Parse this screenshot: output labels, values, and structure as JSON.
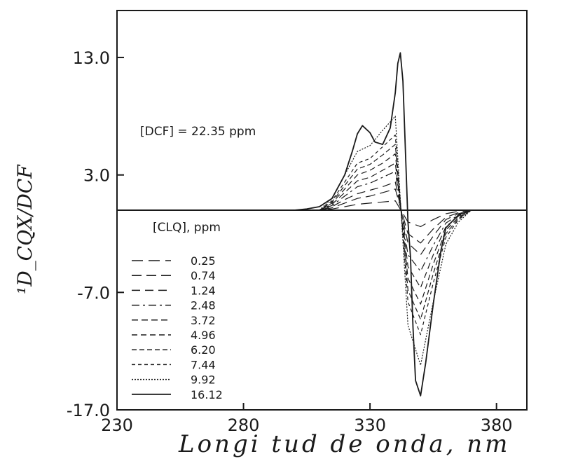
{
  "chart_data": {
    "type": "line",
    "title": "",
    "xlabel": "Longi tud de onda, nm",
    "ylabel": "¹D_CQX/DCF",
    "xlim": [
      230,
      392
    ],
    "ylim": [
      -17,
      17
    ],
    "x_ticks": [
      230,
      280,
      330,
      380
    ],
    "y_ticks": [
      13.0,
      3.0,
      -7.0,
      -17.0
    ],
    "x_tick_labels": [
      "230",
      "280",
      "330",
      "380"
    ],
    "y_tick_labels": [
      "13.0",
      "3.0",
      "-7.0",
      "-17.0"
    ],
    "grid": false,
    "legend_position": "bottom-left",
    "annotations": {
      "dcf": "[DCF] = 22.35 ppm",
      "legend_title": "[CLQ], ppm"
    },
    "series": [
      {
        "name": "0.25",
        "x": [
          300,
          310,
          315,
          320,
          325,
          330,
          335,
          340,
          345,
          350,
          355,
          360,
          365,
          370,
          375,
          380,
          385
        ],
        "y": [
          0,
          0,
          0.1,
          0.3,
          0.5,
          0.6,
          0.7,
          0.8,
          -1.0,
          -1.4,
          -0.8,
          -0.3,
          -0.1,
          0,
          0,
          0,
          0
        ]
      },
      {
        "name": "0.74",
        "x": [
          300,
          310,
          315,
          320,
          325,
          330,
          335,
          340,
          345,
          350,
          355,
          360,
          365,
          370,
          375,
          380,
          385
        ],
        "y": [
          0,
          0,
          0.2,
          0.6,
          1.0,
          1.2,
          1.5,
          1.8,
          -2.0,
          -2.8,
          -1.6,
          -0.6,
          -0.2,
          0,
          0,
          0,
          0
        ]
      },
      {
        "name": "1.24",
        "x": [
          300,
          310,
          315,
          320,
          325,
          330,
          335,
          340,
          345,
          350,
          355,
          360,
          365,
          370,
          375,
          380,
          385
        ],
        "y": [
          0,
          0,
          0.3,
          0.9,
          1.4,
          1.7,
          2.0,
          2.4,
          -2.8,
          -3.8,
          -2.2,
          -0.8,
          -0.3,
          0,
          0,
          0,
          0
        ]
      },
      {
        "name": "2.48",
        "x": [
          300,
          310,
          315,
          320,
          325,
          330,
          335,
          340,
          345,
          350,
          355,
          360,
          365,
          370,
          375,
          380,
          385
        ],
        "y": [
          0,
          0,
          0.4,
          1.2,
          2.0,
          2.3,
          2.8,
          3.3,
          -3.8,
          -5.2,
          -3.0,
          -1.1,
          -0.4,
          0,
          0,
          0,
          0
        ]
      },
      {
        "name": "3.72",
        "x": [
          300,
          310,
          315,
          320,
          325,
          330,
          335,
          340,
          345,
          350,
          355,
          360,
          365,
          370,
          375,
          380,
          385
        ],
        "y": [
          0,
          0,
          0.5,
          1.5,
          2.5,
          2.8,
          3.4,
          4.0,
          -4.8,
          -6.6,
          -3.8,
          -1.4,
          -0.5,
          0,
          0,
          0,
          0
        ]
      },
      {
        "name": "4.96",
        "x": [
          300,
          310,
          315,
          320,
          325,
          330,
          335,
          340,
          345,
          350,
          355,
          360,
          365,
          370,
          375,
          380,
          385
        ],
        "y": [
          0,
          0,
          0.6,
          1.8,
          3.0,
          3.4,
          4.0,
          4.8,
          -5.8,
          -8.0,
          -4.6,
          -1.7,
          -0.6,
          0,
          0,
          0,
          0
        ]
      },
      {
        "name": "6.20",
        "x": [
          300,
          310,
          315,
          320,
          325,
          330,
          335,
          340,
          345,
          350,
          355,
          360,
          365,
          370,
          375,
          380,
          385
        ],
        "y": [
          0,
          0,
          0.7,
          2.1,
          3.5,
          3.9,
          4.7,
          5.6,
          -6.8,
          -9.3,
          -5.4,
          -2.0,
          -0.7,
          0,
          0,
          0,
          0
        ]
      },
      {
        "name": "7.44",
        "x": [
          300,
          310,
          315,
          320,
          325,
          330,
          335,
          340,
          345,
          350,
          355,
          360,
          365,
          370,
          375,
          380,
          385
        ],
        "y": [
          0,
          0,
          0.8,
          2.4,
          4.0,
          4.4,
          5.4,
          6.4,
          -7.8,
          -10.6,
          -6.2,
          -2.3,
          -0.8,
          0,
          0,
          0,
          0
        ]
      },
      {
        "name": "9.92",
        "x": [
          300,
          310,
          315,
          320,
          325,
          330,
          335,
          340,
          345,
          350,
          355,
          360,
          365,
          370,
          375,
          380,
          385
        ],
        "y": [
          0,
          0,
          1.0,
          3.0,
          5.0,
          5.5,
          6.8,
          8.0,
          -9.8,
          -13.2,
          -7.8,
          -2.9,
          -1.0,
          0,
          0,
          0,
          0
        ]
      },
      {
        "name": "16.12",
        "x": [
          300,
          305,
          310,
          315,
          320,
          323,
          325,
          327,
          330,
          332,
          335,
          338,
          340,
          341,
          342,
          343,
          345,
          346,
          347,
          348,
          350,
          352,
          355,
          358,
          360,
          365,
          370,
          375,
          380,
          385
        ],
        "y": [
          0,
          0.1,
          0.3,
          1.0,
          3.0,
          5.0,
          6.5,
          7.2,
          6.6,
          5.8,
          5.6,
          7.0,
          10.0,
          12.5,
          13.4,
          11.0,
          -1.0,
          -4.0,
          -10.0,
          -14.5,
          -15.8,
          -13.0,
          -8.0,
          -3.5,
          -1.5,
          -0.4,
          0,
          0,
          0,
          0
        ]
      }
    ]
  }
}
